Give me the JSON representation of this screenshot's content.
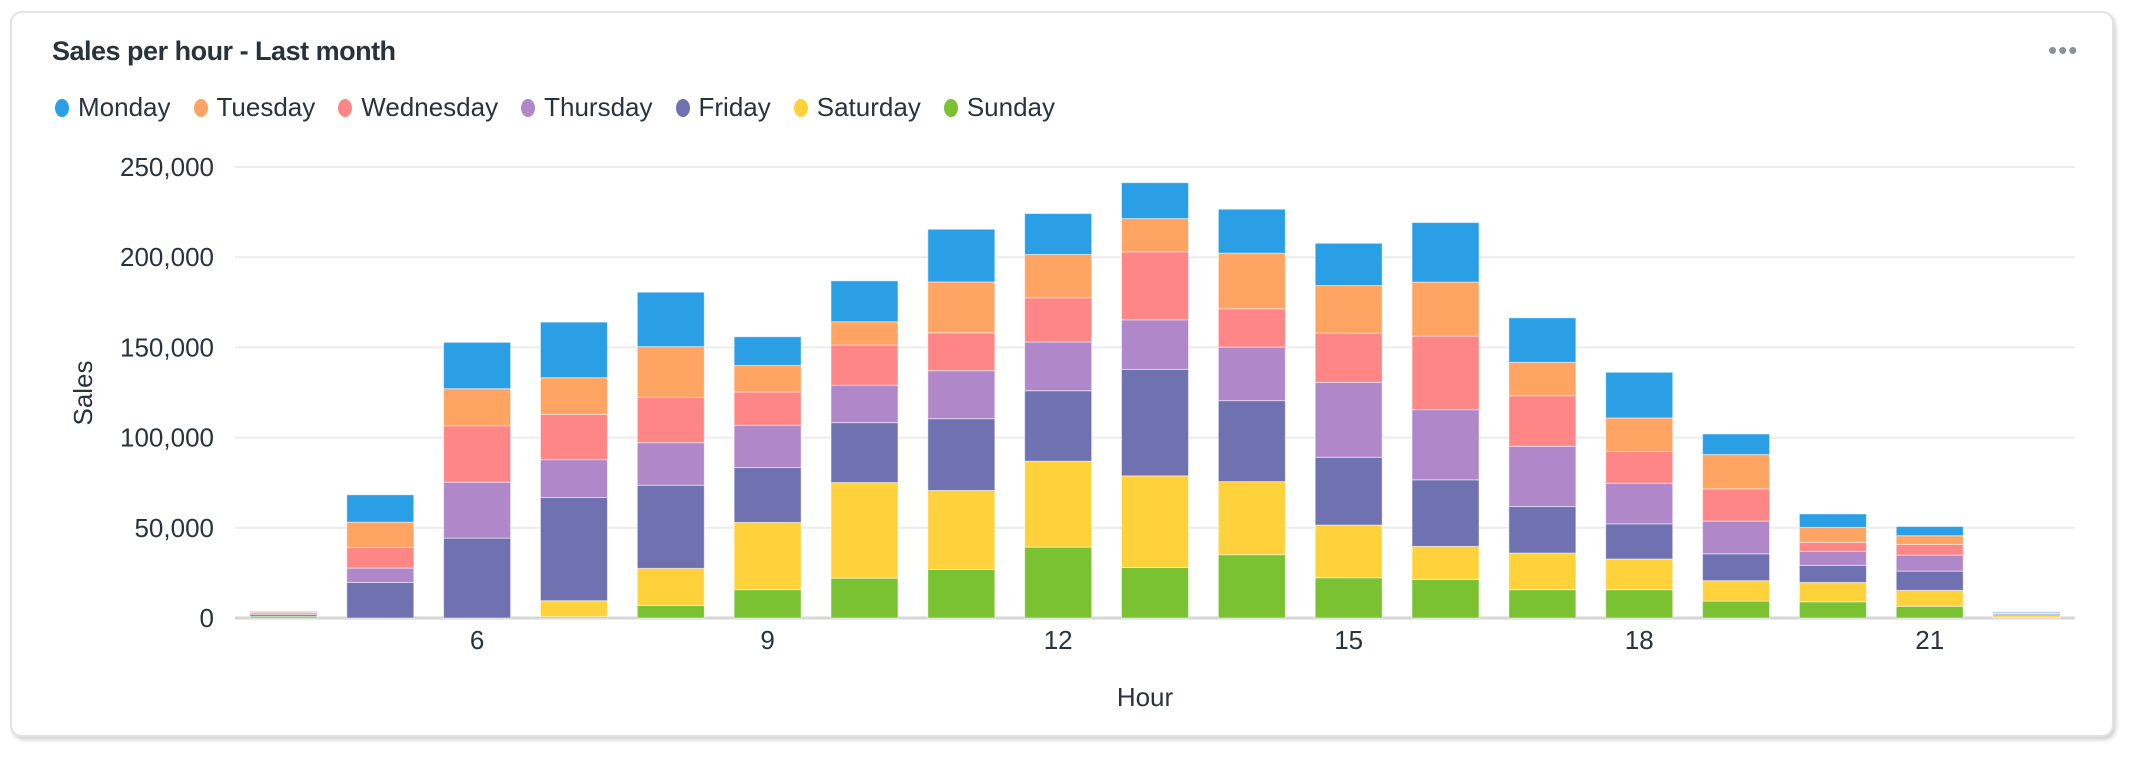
{
  "header": {
    "title": "Sales per hour - Last month",
    "menu_icon": "more-horizontal-icon",
    "menu_label": "•••"
  },
  "chart_data": {
    "type": "bar",
    "stacked": true,
    "title": "Sales per hour - Last month",
    "xlabel": "Hour",
    "ylabel": "Sales",
    "ylim": [
      0,
      250000
    ],
    "yticks": [
      0,
      50000,
      100000,
      150000,
      200000,
      250000
    ],
    "ytick_labels": [
      "0",
      "50,000",
      "100,000",
      "150,000",
      "200,000",
      "250,000"
    ],
    "xticks": [
      6,
      9,
      12,
      15,
      18,
      21
    ],
    "xtick_labels": [
      "6",
      "9",
      "12",
      "15",
      "18",
      "21"
    ],
    "xlim": [
      3.5,
      22.5
    ],
    "grid": true,
    "legend_position": "top-left",
    "categories": [
      4,
      5,
      6,
      7,
      8,
      9,
      10,
      11,
      12,
      13,
      14,
      15,
      16,
      17,
      18,
      19,
      20,
      21,
      22
    ],
    "series": [
      {
        "name": "Sunday",
        "color": "#7ac232",
        "values": [
          1000,
          0,
          0,
          700,
          7000,
          15700,
          22100,
          26900,
          39300,
          28000,
          35100,
          22300,
          21400,
          15700,
          15700,
          9400,
          9000,
          6500,
          300
        ]
      },
      {
        "name": "Saturday",
        "color": "#ffd23c",
        "values": [
          0,
          0,
          0,
          8900,
          20500,
          37300,
          53000,
          43800,
          47600,
          50800,
          40500,
          29200,
          18300,
          20300,
          17000,
          11300,
          10700,
          8800,
          1000
        ]
      },
      {
        "name": "Friday",
        "color": "#7071b0",
        "values": [
          1000,
          19700,
          44300,
          57200,
          46100,
          30400,
          33200,
          39800,
          39100,
          59000,
          44900,
          37600,
          36900,
          25800,
          19500,
          14900,
          9500,
          10700,
          800
        ]
      },
      {
        "name": "Thursday",
        "color": "#b088c9",
        "values": [
          800,
          8000,
          31000,
          21000,
          23600,
          23400,
          20700,
          26600,
          27000,
          27500,
          29700,
          41500,
          38900,
          33400,
          22500,
          18100,
          7700,
          8900,
          300
        ]
      },
      {
        "name": "Wednesday",
        "color": "#ff8686",
        "values": [
          500,
          11400,
          31300,
          25100,
          25100,
          18500,
          22300,
          21000,
          24500,
          37700,
          21200,
          27300,
          40800,
          28000,
          17600,
          17900,
          5000,
          5900,
          300
        ]
      },
      {
        "name": "Tuesday",
        "color": "#ffa462",
        "values": [
          500,
          14000,
          20500,
          20300,
          28100,
          14700,
          12900,
          28200,
          24000,
          18400,
          30800,
          26400,
          29900,
          18500,
          18600,
          19000,
          8300,
          4800,
          200
        ]
      },
      {
        "name": "Monday",
        "color": "#2b9fe6",
        "values": [
          0,
          15200,
          25700,
          30800,
          30200,
          15900,
          22700,
          29200,
          22700,
          19900,
          24400,
          23400,
          33000,
          24700,
          25300,
          11400,
          7500,
          5100,
          500
        ]
      }
    ],
    "legend": [
      "Monday",
      "Tuesday",
      "Wednesday",
      "Thursday",
      "Friday",
      "Saturday",
      "Sunday"
    ]
  }
}
